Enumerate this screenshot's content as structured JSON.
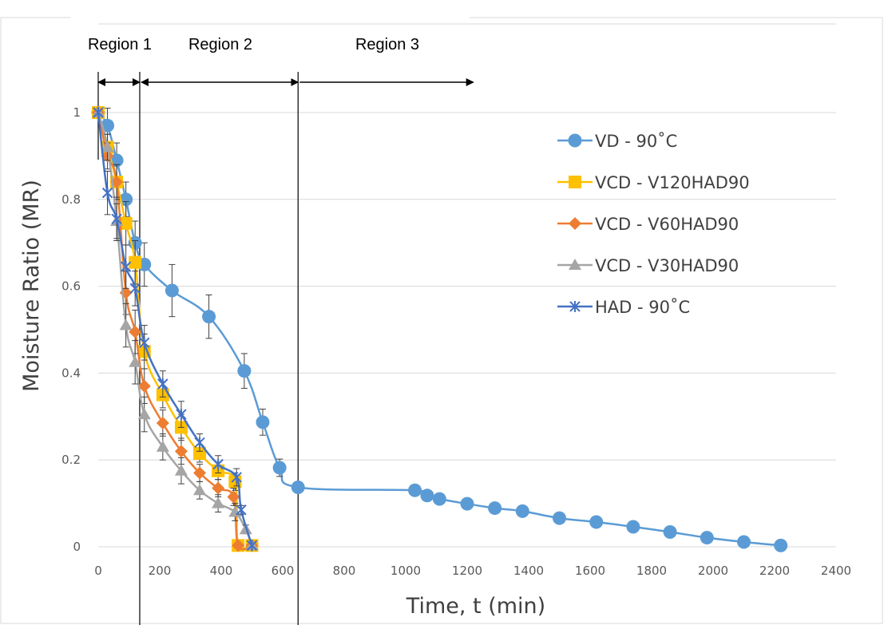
{
  "chart_data": {
    "type": "line",
    "title": "",
    "xlabel": "Time, t (min)",
    "ylabel": "Moisture Ratio (MR)",
    "xlim": [
      0,
      2400
    ],
    "ylim": [
      0,
      1.05
    ],
    "x_ticks": [
      "0",
      "200",
      "400",
      "600",
      "800",
      "1000",
      "1200",
      "1400",
      "1600",
      "1800",
      "2000",
      "2200",
      "2400"
    ],
    "y_ticks": [
      "0",
      "0.2",
      "0.4",
      "0.6",
      "0.8",
      "1"
    ],
    "grid": "horizontal",
    "legend_position": "right",
    "regions": [
      {
        "label": "Region 1",
        "from": 0,
        "to": 135
      },
      {
        "label": "Region 2",
        "from": 135,
        "to": 650
      },
      {
        "label": "Region 3",
        "from": 650,
        "to": 1220
      }
    ],
    "series": [
      {
        "name": "VD - 90˚C",
        "color": "#5b9bd5",
        "marker": "circle",
        "x": [
          0,
          30,
          60,
          90,
          120,
          150,
          240,
          360,
          475,
          535,
          590,
          650,
          1030,
          1070,
          1110,
          1200,
          1290,
          1380,
          1500,
          1620,
          1740,
          1860,
          1980,
          2100,
          2220
        ],
        "y": [
          1.0,
          0.97,
          0.89,
          0.8,
          0.7,
          0.65,
          0.59,
          0.53,
          0.405,
          0.287,
          0.182,
          0.137,
          0.13,
          0.118,
          0.11,
          0.099,
          0.089,
          0.082,
          0.066,
          0.057,
          0.046,
          0.034,
          0.021,
          0.011,
          0.003
        ],
        "err": [
          0,
          0.04,
          0.04,
          0.04,
          0.05,
          0.05,
          0.06,
          0.05,
          0.04,
          0.03,
          0.02,
          0.01,
          0,
          0,
          0,
          0,
          0,
          0,
          0,
          0,
          0,
          0,
          0,
          0,
          0
        ]
      },
      {
        "name": "VCD - V120HAD90",
        "color": "#ffc000",
        "marker": "square",
        "x": [
          0,
          30,
          60,
          90,
          120,
          150,
          210,
          270,
          330,
          390,
          445,
          455,
          500
        ],
        "y": [
          1.0,
          0.92,
          0.84,
          0.745,
          0.655,
          0.45,
          0.35,
          0.275,
          0.215,
          0.175,
          0.15,
          0.003,
          0.003
        ],
        "err": [
          0,
          0.03,
          0.04,
          0.05,
          0.05,
          0.04,
          0.03,
          0.03,
          0.02,
          0.02,
          0.02,
          0,
          0
        ]
      },
      {
        "name": "VCD - V60HAD90",
        "color": "#ed7d31",
        "marker": "diamond",
        "x": [
          0,
          30,
          60,
          90,
          120,
          150,
          210,
          270,
          330,
          390,
          440,
          455,
          500
        ],
        "y": [
          1.0,
          0.9,
          0.84,
          0.585,
          0.495,
          0.37,
          0.285,
          0.22,
          0.17,
          0.135,
          0.115,
          0.003,
          0.003
        ],
        "err": [
          0,
          0.03,
          0.04,
          0.05,
          0.05,
          0.04,
          0.03,
          0.03,
          0.02,
          0.02,
          0.02,
          0,
          0
        ]
      },
      {
        "name": "VCD - V30HAD90",
        "color": "#a5a5a5",
        "marker": "triangle",
        "x": [
          0,
          30,
          60,
          90,
          120,
          150,
          210,
          270,
          330,
          390,
          445,
          480,
          500
        ],
        "y": [
          1.0,
          0.92,
          0.75,
          0.51,
          0.425,
          0.305,
          0.23,
          0.175,
          0.13,
          0.1,
          0.08,
          0.04,
          0.003
        ],
        "err": [
          0,
          0.03,
          0.04,
          0.05,
          0.05,
          0.04,
          0.03,
          0.03,
          0.02,
          0.02,
          0.02,
          0.01,
          0
        ]
      },
      {
        "name": "HAD - 90˚C",
        "color": "#4472c4",
        "marker": "star",
        "x": [
          0,
          30,
          60,
          90,
          120,
          150,
          210,
          270,
          330,
          390,
          450,
          465,
          500
        ],
        "y": [
          1.0,
          0.815,
          0.755,
          0.645,
          0.595,
          0.47,
          0.375,
          0.305,
          0.24,
          0.19,
          0.16,
          0.085,
          0.003
        ],
        "err": [
          0,
          0.05,
          0.05,
          0.05,
          0.04,
          0.04,
          0.03,
          0.03,
          0.02,
          0.02,
          0.02,
          0.01,
          0
        ]
      }
    ]
  }
}
